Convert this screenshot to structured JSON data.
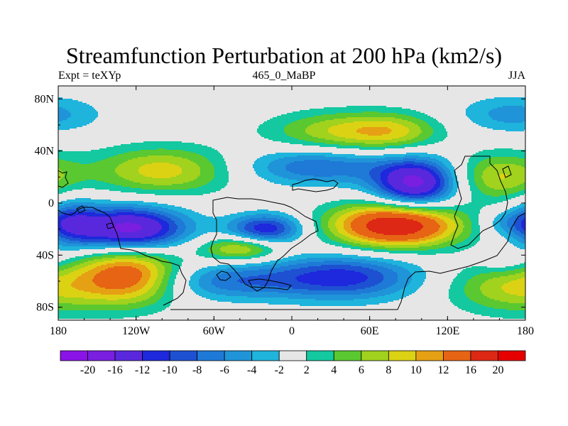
{
  "chart_data": {
    "type": "heatmap",
    "title": "Streamfunction Perturbation at 200 hPa (km2/s)",
    "left_label": "Expt = teXYp",
    "center_label": "465_0_MaBP",
    "right_label": "JJA",
    "x_ticks": [
      {
        "value": -180,
        "label": "180"
      },
      {
        "value": -120,
        "label": "120W"
      },
      {
        "value": -60,
        "label": "60W"
      },
      {
        "value": 0,
        "label": "0"
      },
      {
        "value": 60,
        "label": "60E"
      },
      {
        "value": 120,
        "label": "120E"
      },
      {
        "value": 180,
        "label": "180"
      }
    ],
    "y_ticks": [
      {
        "value": 80,
        "label": "80N"
      },
      {
        "value": 40,
        "label": "40N"
      },
      {
        "value": 0,
        "label": "0"
      },
      {
        "value": -40,
        "label": "40S"
      },
      {
        "value": -80,
        "label": "80S"
      }
    ],
    "xlim": [
      -180,
      180
    ],
    "ylim": [
      -90,
      90
    ],
    "colorbar": {
      "labels": [
        "-20",
        "-16",
        "-12",
        "-10",
        "-8",
        "-6",
        "-4",
        "-2",
        "2",
        "4",
        "6",
        "8",
        "10",
        "12",
        "16",
        "20"
      ],
      "colors": [
        "#8a14e6",
        "#7a1ee0",
        "#5a28dc",
        "#1e28dc",
        "#1e50d2",
        "#1e7ad6",
        "#2094d8",
        "#1eb4dc",
        "#e6e6e6",
        "#14c8a0",
        "#5ac830",
        "#a0d21e",
        "#dcd214",
        "#e6a014",
        "#e66414",
        "#dc2814",
        "#e60000"
      ]
    },
    "anomalies": [
      {
        "lon": -100,
        "lat": 25,
        "sx": 38,
        "sy": 13,
        "value": 9
      },
      {
        "lon": 40,
        "lat": 55,
        "sx": 40,
        "sy": 11,
        "value": 8
      },
      {
        "lon": 80,
        "lat": 55,
        "sx": 25,
        "sy": 10,
        "value": 5
      },
      {
        "lon": 160,
        "lat": 20,
        "sx": 25,
        "sy": 13,
        "value": 8
      },
      {
        "lon": 170,
        "lat": 68,
        "sx": 30,
        "sy": 10,
        "value": -5
      },
      {
        "lon": 20,
        "lat": 28,
        "sx": 40,
        "sy": 10,
        "value": -8
      },
      {
        "lon": 95,
        "lat": 15,
        "sx": 22,
        "sy": 13,
        "value": -17
      },
      {
        "lon": -125,
        "lat": -20,
        "sx": 30,
        "sy": 12,
        "value": -18
      },
      {
        "lon": -170,
        "lat": -15,
        "sx": 15,
        "sy": 13,
        "value": -8
      },
      {
        "lon": -20,
        "lat": -20,
        "sx": 20,
        "sy": 8,
        "value": -12
      },
      {
        "lon": 80,
        "lat": -17,
        "sx": 35,
        "sy": 12,
        "value": 20
      },
      {
        "lon": -40,
        "lat": -35,
        "sx": 22,
        "sy": 7,
        "value": 9
      },
      {
        "lon": -125,
        "lat": -55,
        "sx": 28,
        "sy": 16,
        "value": 14
      },
      {
        "lon": 40,
        "lat": -57,
        "sx": 40,
        "sy": 12,
        "value": -11
      },
      {
        "lon": -50,
        "lat": -60,
        "sx": 40,
        "sy": 10,
        "value": -7
      },
      {
        "lon": 170,
        "lat": -65,
        "sx": 35,
        "sy": 14,
        "value": 8
      },
      {
        "lon": 165,
        "lat": -15,
        "sx": 15,
        "sy": 7,
        "value": -4
      },
      {
        "lon": 165,
        "lat": -45,
        "sx": 15,
        "sy": 7,
        "value": -3
      }
    ]
  }
}
